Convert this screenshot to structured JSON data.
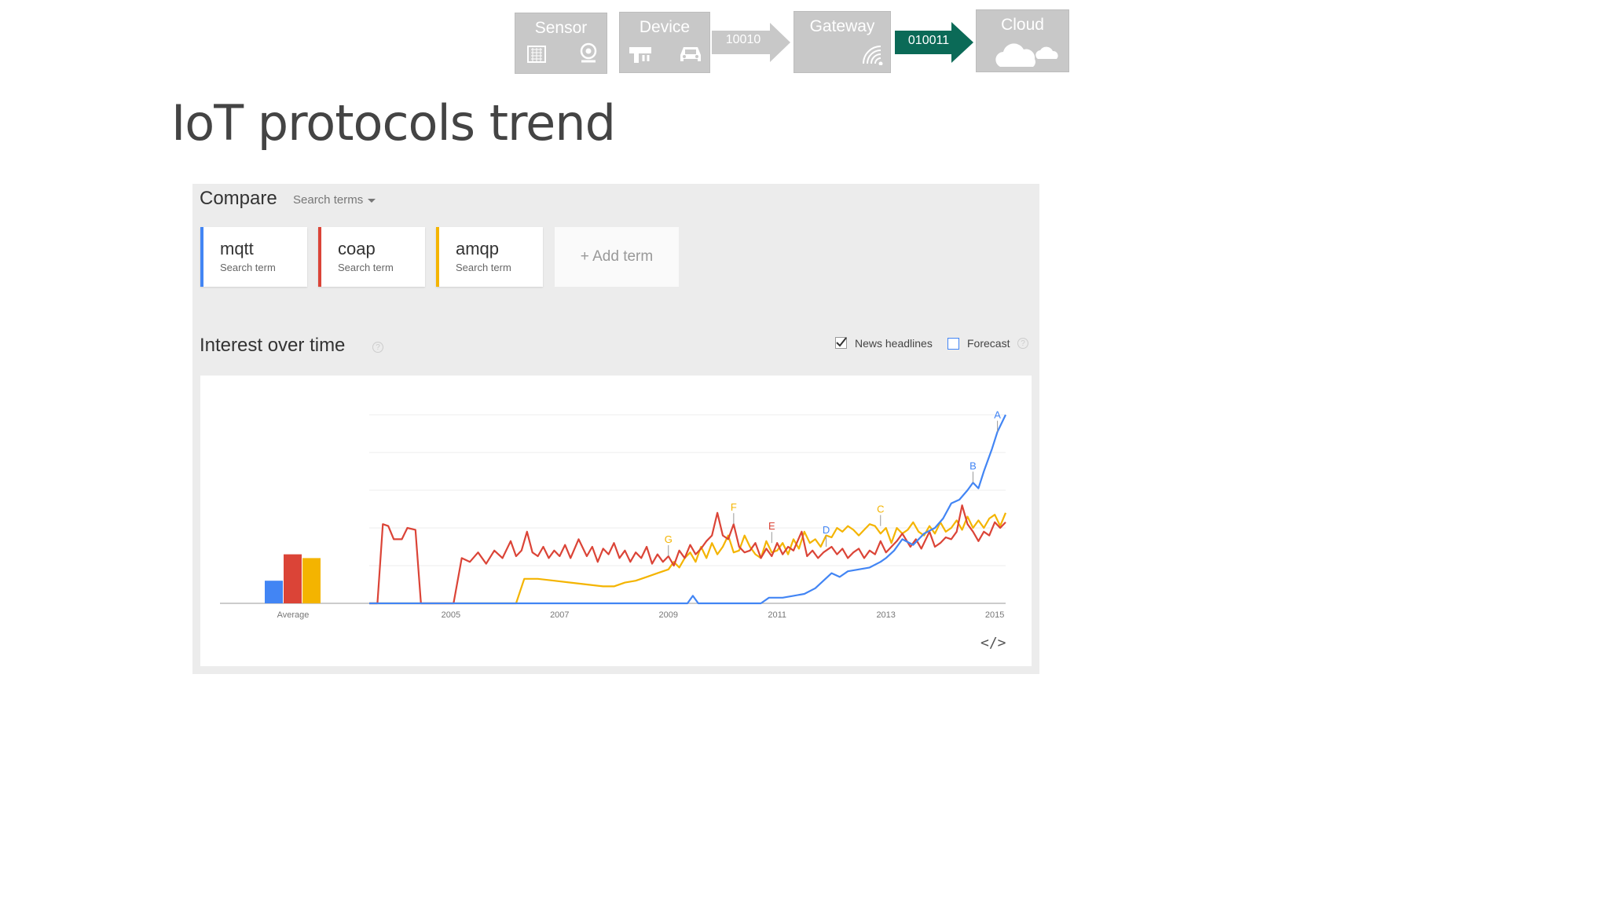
{
  "flow": {
    "sensor": "Sensor",
    "device": "Device",
    "gateway": "Gateway",
    "cloud": "Cloud",
    "arrow1": "10010",
    "arrow2": "010011",
    "arrow_green": "#0b6a57",
    "box_color": "#c8c8c8"
  },
  "slide_title": "IoT protocols trend",
  "compare": {
    "title": "Compare",
    "dropdown": "Search terms",
    "terms": [
      {
        "name": "mqtt",
        "sub": "Search term",
        "color": "#4285f4"
      },
      {
        "name": "coap",
        "sub": "Search term",
        "color": "#db4437"
      },
      {
        "name": "amqp",
        "sub": "Search term",
        "color": "#f4b400"
      }
    ],
    "add_term": "+ Add term"
  },
  "interest": {
    "title": "Interest over time",
    "help": "?",
    "news_label": "News headlines",
    "news_checked": true,
    "forecast_label": "Forecast",
    "forecast_checked": false,
    "embed": "</>"
  },
  "chart_data": {
    "type": "line",
    "xlabel": "",
    "ylabel": "",
    "ylim": [
      0,
      100
    ],
    "xlim": [
      2003.5,
      2015.2
    ],
    "x_ticks": [
      "2005",
      "2007",
      "2009",
      "2011",
      "2013",
      "2015"
    ],
    "average_label": "Average",
    "averages": [
      {
        "name": "mqtt",
        "value": 12
      },
      {
        "name": "coap",
        "value": 26
      },
      {
        "name": "amqp",
        "value": 24
      }
    ],
    "series": [
      {
        "name": "mqtt",
        "color": "#4285f4",
        "points": [
          [
            2003.5,
            0
          ],
          [
            2009.0,
            0
          ],
          [
            2009.35,
            0
          ],
          [
            2009.45,
            4
          ],
          [
            2009.55,
            0
          ],
          [
            2010.7,
            0
          ],
          [
            2010.85,
            3
          ],
          [
            2011.1,
            3
          ],
          [
            2011.3,
            4
          ],
          [
            2011.5,
            5
          ],
          [
            2011.7,
            8
          ],
          [
            2011.85,
            12
          ],
          [
            2012.0,
            16
          ],
          [
            2012.15,
            14
          ],
          [
            2012.3,
            17
          ],
          [
            2012.5,
            18
          ],
          [
            2012.7,
            19
          ],
          [
            2012.9,
            22
          ],
          [
            2013.0,
            24
          ],
          [
            2013.15,
            28
          ],
          [
            2013.3,
            34
          ],
          [
            2013.5,
            31
          ],
          [
            2013.7,
            37
          ],
          [
            2013.9,
            40
          ],
          [
            2014.05,
            45
          ],
          [
            2014.2,
            53
          ],
          [
            2014.35,
            55
          ],
          [
            2014.5,
            60
          ],
          [
            2014.6,
            64
          ],
          [
            2014.7,
            61
          ],
          [
            2014.8,
            70
          ],
          [
            2014.95,
            82
          ],
          [
            2015.05,
            91
          ],
          [
            2015.2,
            100
          ]
        ]
      },
      {
        "name": "coap",
        "color": "#db4437",
        "points": [
          [
            2003.5,
            0
          ],
          [
            2003.65,
            0
          ],
          [
            2003.75,
            42
          ],
          [
            2003.85,
            41
          ],
          [
            2003.95,
            34
          ],
          [
            2004.1,
            34
          ],
          [
            2004.2,
            40
          ],
          [
            2004.35,
            39
          ],
          [
            2004.45,
            0
          ],
          [
            2004.9,
            0
          ],
          [
            2005.05,
            0
          ],
          [
            2005.2,
            24
          ],
          [
            2005.35,
            22
          ],
          [
            2005.5,
            27
          ],
          [
            2005.65,
            21
          ],
          [
            2005.8,
            28
          ],
          [
            2005.95,
            24
          ],
          [
            2006.1,
            33
          ],
          [
            2006.2,
            25
          ],
          [
            2006.3,
            28
          ],
          [
            2006.4,
            38
          ],
          [
            2006.5,
            27
          ],
          [
            2006.6,
            25
          ],
          [
            2006.7,
            30
          ],
          [
            2006.8,
            24
          ],
          [
            2006.9,
            28
          ],
          [
            2007.0,
            25
          ],
          [
            2007.1,
            31
          ],
          [
            2007.2,
            24
          ],
          [
            2007.35,
            34
          ],
          [
            2007.5,
            25
          ],
          [
            2007.6,
            30
          ],
          [
            2007.7,
            22
          ],
          [
            2007.8,
            29
          ],
          [
            2007.9,
            26
          ],
          [
            2008.0,
            32
          ],
          [
            2008.1,
            24
          ],
          [
            2008.2,
            28
          ],
          [
            2008.3,
            22
          ],
          [
            2008.4,
            27
          ],
          [
            2008.5,
            24
          ],
          [
            2008.6,
            30
          ],
          [
            2008.7,
            21
          ],
          [
            2008.8,
            26
          ],
          [
            2008.9,
            22
          ],
          [
            2009.0,
            25
          ],
          [
            2009.1,
            20
          ],
          [
            2009.2,
            28
          ],
          [
            2009.3,
            24
          ],
          [
            2009.4,
            31
          ],
          [
            2009.5,
            26
          ],
          [
            2009.6,
            29
          ],
          [
            2009.7,
            33
          ],
          [
            2009.8,
            36
          ],
          [
            2009.9,
            48
          ],
          [
            2010.0,
            36
          ],
          [
            2010.1,
            34
          ],
          [
            2010.2,
            42
          ],
          [
            2010.3,
            30
          ],
          [
            2010.4,
            27
          ],
          [
            2010.5,
            28
          ],
          [
            2010.6,
            32
          ],
          [
            2010.7,
            24
          ],
          [
            2010.8,
            29
          ],
          [
            2010.9,
            25
          ],
          [
            2011.0,
            32
          ],
          [
            2011.1,
            26
          ],
          [
            2011.2,
            30
          ],
          [
            2011.3,
            28
          ],
          [
            2011.45,
            38
          ],
          [
            2011.55,
            25
          ],
          [
            2011.65,
            28
          ],
          [
            2011.75,
            24
          ],
          [
            2011.85,
            27
          ],
          [
            2012.0,
            30
          ],
          [
            2012.1,
            26
          ],
          [
            2012.2,
            29
          ],
          [
            2012.3,
            24
          ],
          [
            2012.4,
            27
          ],
          [
            2012.5,
            29
          ],
          [
            2012.6,
            24
          ],
          [
            2012.7,
            28
          ],
          [
            2012.8,
            26
          ],
          [
            2012.9,
            33
          ],
          [
            2013.0,
            27
          ],
          [
            2013.1,
            30
          ],
          [
            2013.2,
            33
          ],
          [
            2013.3,
            37
          ],
          [
            2013.45,
            30
          ],
          [
            2013.55,
            34
          ],
          [
            2013.65,
            29
          ],
          [
            2013.8,
            38
          ],
          [
            2013.9,
            30
          ],
          [
            2014.0,
            32
          ],
          [
            2014.1,
            35
          ],
          [
            2014.2,
            34
          ],
          [
            2014.3,
            38
          ],
          [
            2014.4,
            52
          ],
          [
            2014.5,
            42
          ],
          [
            2014.6,
            38
          ],
          [
            2014.7,
            33
          ],
          [
            2014.8,
            38
          ],
          [
            2014.9,
            36
          ],
          [
            2015.0,
            43
          ],
          [
            2015.1,
            40
          ],
          [
            2015.2,
            43
          ]
        ]
      },
      {
        "name": "amqp",
        "color": "#f4b400",
        "points": [
          [
            2003.5,
            0
          ],
          [
            2006.2,
            0
          ],
          [
            2006.35,
            13
          ],
          [
            2006.6,
            13
          ],
          [
            2006.9,
            12
          ],
          [
            2007.2,
            11
          ],
          [
            2007.5,
            10
          ],
          [
            2007.8,
            9
          ],
          [
            2008.0,
            9
          ],
          [
            2008.2,
            11
          ],
          [
            2008.4,
            12
          ],
          [
            2008.6,
            14
          ],
          [
            2008.8,
            16
          ],
          [
            2009.0,
            18
          ],
          [
            2009.1,
            22
          ],
          [
            2009.2,
            19
          ],
          [
            2009.3,
            24
          ],
          [
            2009.4,
            27
          ],
          [
            2009.5,
            22
          ],
          [
            2009.6,
            30
          ],
          [
            2009.7,
            24
          ],
          [
            2009.8,
            32
          ],
          [
            2009.9,
            26
          ],
          [
            2010.0,
            30
          ],
          [
            2010.1,
            36
          ],
          [
            2010.2,
            27
          ],
          [
            2010.3,
            28
          ],
          [
            2010.4,
            36
          ],
          [
            2010.5,
            30
          ],
          [
            2010.6,
            26
          ],
          [
            2010.7,
            24
          ],
          [
            2010.8,
            33
          ],
          [
            2010.9,
            27
          ],
          [
            2011.0,
            28
          ],
          [
            2011.1,
            32
          ],
          [
            2011.2,
            26
          ],
          [
            2011.3,
            34
          ],
          [
            2011.4,
            29
          ],
          [
            2011.5,
            38
          ],
          [
            2011.6,
            32
          ],
          [
            2011.7,
            34
          ],
          [
            2011.8,
            30
          ],
          [
            2011.9,
            36
          ],
          [
            2012.0,
            35
          ],
          [
            2012.1,
            40
          ],
          [
            2012.2,
            38
          ],
          [
            2012.3,
            41
          ],
          [
            2012.4,
            39
          ],
          [
            2012.5,
            36
          ],
          [
            2012.6,
            39
          ],
          [
            2012.7,
            42
          ],
          [
            2012.8,
            41
          ],
          [
            2012.9,
            37
          ],
          [
            2013.0,
            40
          ],
          [
            2013.1,
            32
          ],
          [
            2013.2,
            40
          ],
          [
            2013.3,
            37
          ],
          [
            2013.4,
            39
          ],
          [
            2013.5,
            43
          ],
          [
            2013.6,
            38
          ],
          [
            2013.7,
            36
          ],
          [
            2013.8,
            41
          ],
          [
            2013.9,
            37
          ],
          [
            2014.0,
            43
          ],
          [
            2014.1,
            38
          ],
          [
            2014.2,
            40
          ],
          [
            2014.3,
            44
          ],
          [
            2014.4,
            39
          ],
          [
            2014.5,
            46
          ],
          [
            2014.6,
            40
          ],
          [
            2014.7,
            44
          ],
          [
            2014.8,
            40
          ],
          [
            2014.9,
            45
          ],
          [
            2015.0,
            47
          ],
          [
            2015.1,
            41
          ],
          [
            2015.2,
            48
          ]
        ]
      }
    ],
    "annotations": [
      {
        "label": "A",
        "x": 2015.05,
        "y": 91,
        "color": "#4285f4"
      },
      {
        "label": "B",
        "x": 2014.6,
        "y": 64,
        "color": "#4285f4"
      },
      {
        "label": "C",
        "x": 2012.9,
        "y": 41,
        "color": "#f4b400"
      },
      {
        "label": "D",
        "x": 2011.9,
        "y": 30,
        "color": "#4285f4"
      },
      {
        "label": "E",
        "x": 2010.9,
        "y": 32,
        "color": "#db4437"
      },
      {
        "label": "F",
        "x": 2010.2,
        "y": 42,
        "color": "#f4b400"
      },
      {
        "label": "G",
        "x": 2009.0,
        "y": 25,
        "color": "#f4b400"
      }
    ],
    "grid": true,
    "legend": "none"
  }
}
